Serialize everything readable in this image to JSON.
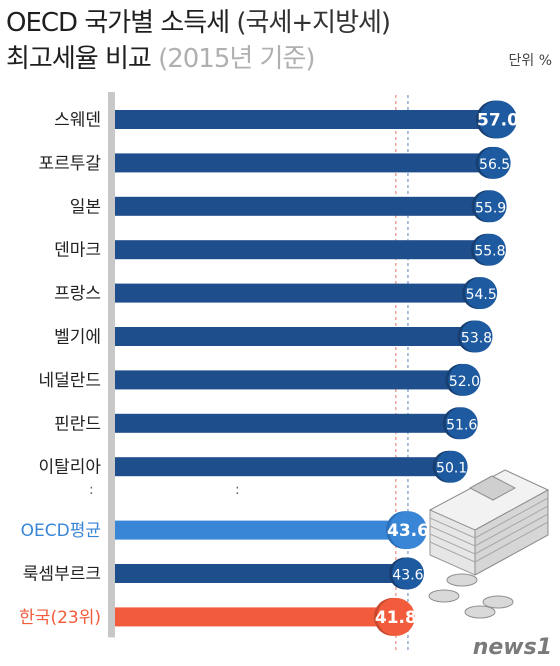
{
  "title": {
    "line1_main": "OECD 국가별 소득세",
    "line1_sub": "(국세+지방세)",
    "line2_main": "최고세율 비교",
    "line2_note": "(2015년 기준)"
  },
  "unit": "단위 %",
  "watermark": "news1",
  "ellipsis": ":",
  "colors": {
    "bar": "#1f4e8c",
    "badge": "#1d5aa0",
    "badge_dark": "#173f72",
    "average": "#3a86d6",
    "korea": "#f25c3c",
    "axis": "#c8c8c8",
    "guide_red": "#e8746a",
    "guide_blue": "#5a7fb8"
  },
  "chart_data": {
    "type": "bar",
    "orientation": "horizontal",
    "categories": [
      "스웨덴",
      "포르투갈",
      "일본",
      "덴마크",
      "프랑스",
      "벨기에",
      "네덜란드",
      "핀란드",
      "이탈리아",
      "OECD평균",
      "룩셈부르크",
      "한국(23위)"
    ],
    "values": [
      57.0,
      56.5,
      55.9,
      55.8,
      54.5,
      53.8,
      52.0,
      51.6,
      50.1,
      43.6,
      43.6,
      41.8
    ],
    "value_labels": [
      "57.0",
      "56.5",
      "55.9",
      "55.8",
      "54.5",
      "53.8",
      "52.0",
      "51.6",
      "50.1",
      "43.6",
      "43.6",
      "41.8"
    ],
    "highlight": {
      "OECD평균": "average",
      "한국(23위)": "korea"
    },
    "gap_after_index": 8,
    "reference_lines": [
      {
        "value": 41.8,
        "style": "dashed",
        "color": "guide_red"
      },
      {
        "value": 43.6,
        "style": "dashed",
        "color": "guide_blue"
      }
    ],
    "xlim": [
      0,
      57.0
    ],
    "grid": false
  }
}
